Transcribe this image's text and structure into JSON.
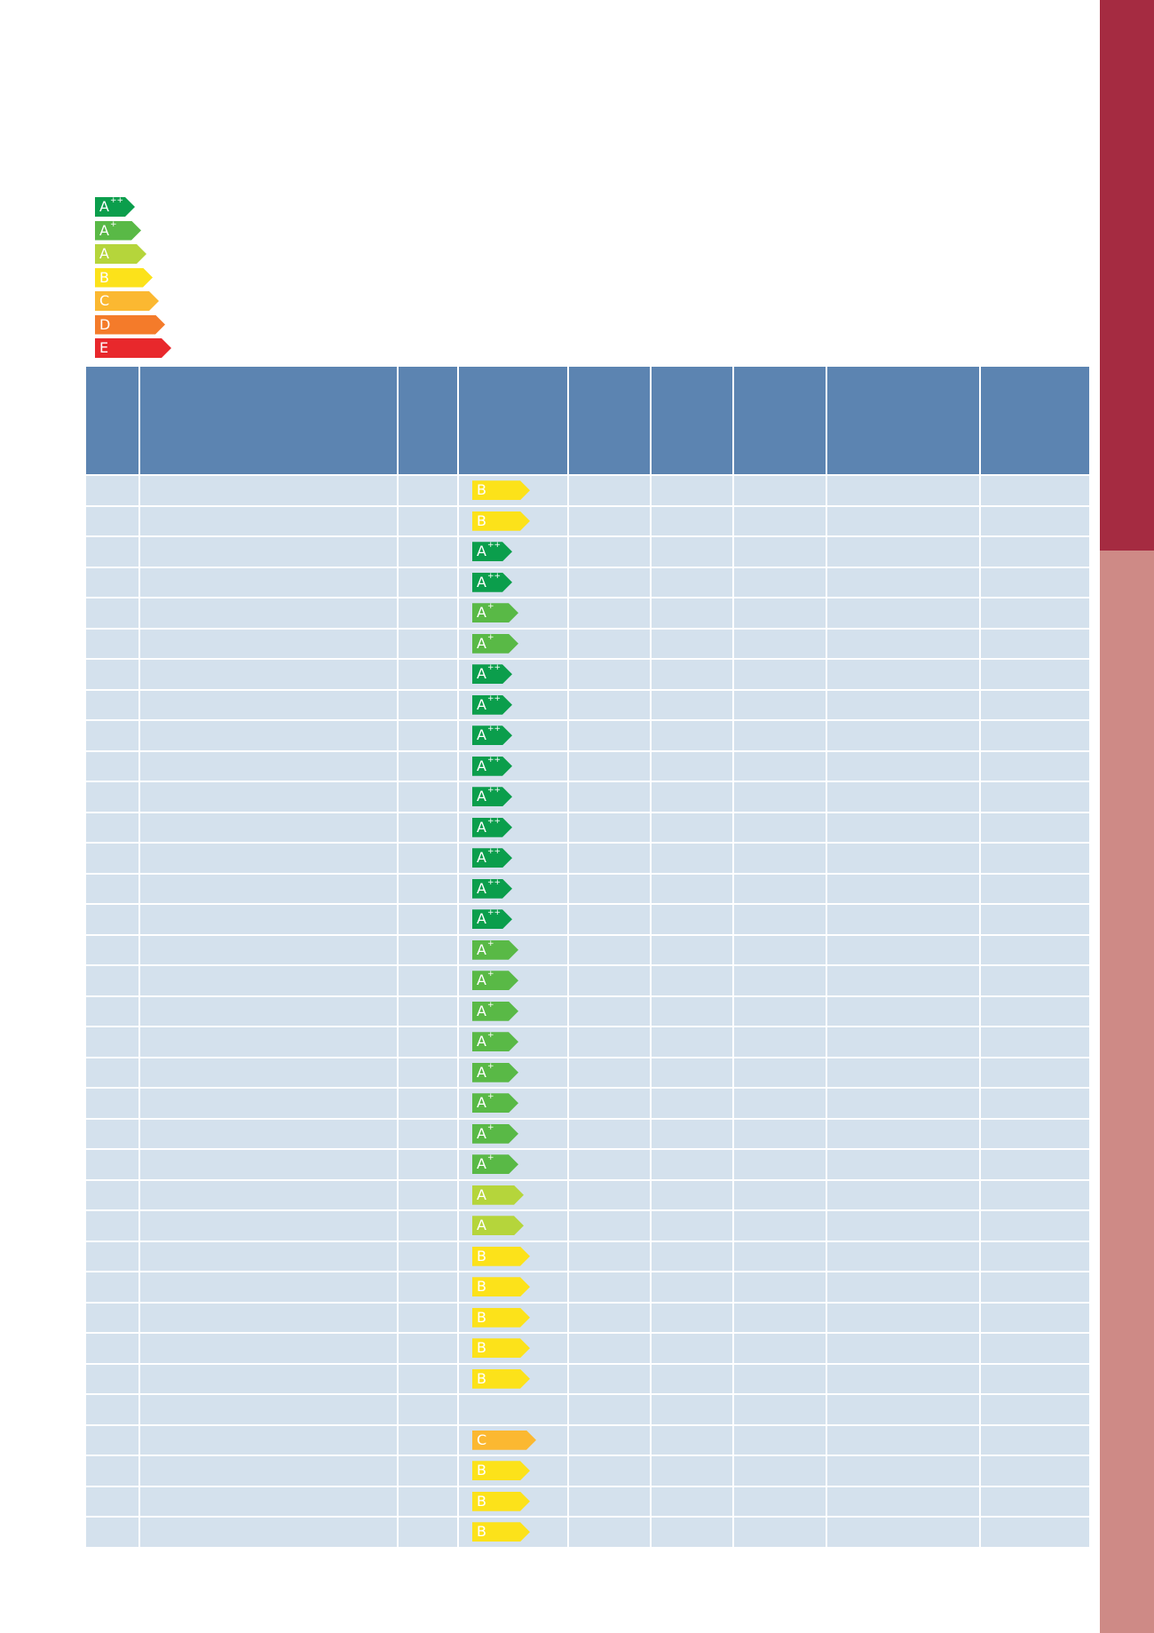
{
  "colors": {
    "sidebar_top": "#a52b41",
    "sidebar_bottom": "#ce8a86",
    "header_bg": "#5c84b1",
    "cell_bg": "#d4e1ed"
  },
  "energy_classes": {
    "A++": {
      "base": "A",
      "sup": "++",
      "color": "#0b9e4c",
      "width": 45
    },
    "A+": {
      "base": "A",
      "sup": "+",
      "color": "#59b946",
      "width": 52
    },
    "A": {
      "base": "A",
      "sup": "",
      "color": "#b5d53b",
      "width": 58
    },
    "B": {
      "base": "B",
      "sup": "",
      "color": "#fce21a",
      "width": 65
    },
    "C": {
      "base": "C",
      "sup": "",
      "color": "#fbb831",
      "width": 72
    },
    "D": {
      "base": "D",
      "sup": "",
      "color": "#f47b2a",
      "width": 79
    },
    "E": {
      "base": "E",
      "sup": "",
      "color": "#e8282c",
      "width": 86
    }
  },
  "legend": [
    "A++",
    "A+",
    "A",
    "B",
    "C",
    "D",
    "E"
  ],
  "table": {
    "column_count": 9,
    "rows": [
      "B",
      "B",
      "A++",
      "A++",
      "A+",
      "A+",
      "A++",
      "A++",
      "A++",
      "A++",
      "A++",
      "A++",
      "A++",
      "A++",
      "A++",
      "A+",
      "A+",
      "A+",
      "A+",
      "A+",
      "A+",
      "A+",
      "A+",
      "A",
      "A",
      "B",
      "B",
      "B",
      "B",
      "B",
      "",
      "C",
      "B",
      "B",
      "B"
    ]
  }
}
